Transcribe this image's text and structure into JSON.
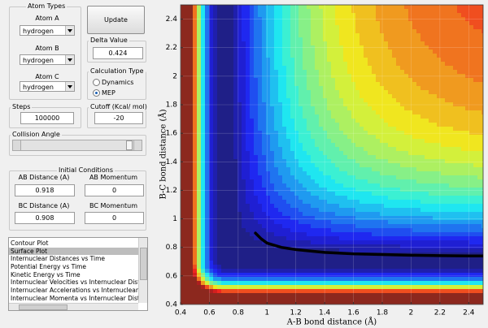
{
  "controls": {
    "atom_types": {
      "title": "Atom Types",
      "atoms": [
        {
          "label": "Atom A",
          "value": "hydrogen"
        },
        {
          "label": "Atom B",
          "value": "hydrogen"
        },
        {
          "label": "Atom C",
          "value": "hydrogen"
        }
      ]
    },
    "update_button": "Update",
    "delta_value": {
      "title": "Delta Value",
      "value": 0.424
    },
    "calculation_type": {
      "title": "Calculation Type",
      "options": [
        "Dynamics",
        "MEP"
      ],
      "selected": 1
    },
    "steps": {
      "title": "Steps",
      "value": 100000
    },
    "cutoff": {
      "title": "Cutoff (Kcal/ mol)",
      "value": -20
    },
    "collision_angle": {
      "title": "Collision Angle"
    },
    "initial_conditions": {
      "title": "Initial Conditions",
      "ab_distance": {
        "label": "AB Distance (A)",
        "value": 0.918
      },
      "ab_momentum": {
        "label": "AB Momentum",
        "value": 0
      },
      "bc_distance": {
        "label": "BC Distance (A)",
        "value": 0.908
      },
      "bc_momentum": {
        "label": "BC Momentum",
        "value": 0
      }
    },
    "plot_list": {
      "items": [
        "Contour Plot",
        "Surface Plot",
        "Internuclear Distances vs Time",
        "Potential Energy vs Time",
        "Kinetic Energy vs Time",
        "Internuclear Velocities vs Internuclear Distance",
        "Internuclear Accelerations vs Internuclear Distance",
        "Internuclear Momenta vs Internuclear Distance"
      ],
      "selected": 1
    }
  },
  "chart_data": {
    "type": "contour",
    "xlabel": "A-B bond distance (Å)",
    "ylabel": "B-C bond distance (Å)",
    "xlim": [
      0.4,
      2.5
    ],
    "ylim": [
      0.4,
      2.5
    ],
    "xticks": [
      0.4,
      0.6,
      0.8,
      1,
      1.2,
      1.4,
      1.6,
      1.8,
      2,
      2.2,
      2.4
    ],
    "yticks": [
      0.4,
      0.6,
      0.8,
      1,
      1.2,
      1.4,
      1.6,
      1.8,
      2,
      2.2,
      2.4
    ],
    "trajectory": {
      "color": "#000000",
      "x": [
        0.92,
        0.96,
        1.0,
        1.1,
        1.2,
        1.4,
        1.6,
        1.8,
        2.0,
        2.2,
        2.4,
        2.5
      ],
      "y": [
        0.9,
        0.86,
        0.83,
        0.8,
        0.785,
        0.765,
        0.755,
        0.75,
        0.745,
        0.742,
        0.74,
        0.74
      ]
    }
  }
}
